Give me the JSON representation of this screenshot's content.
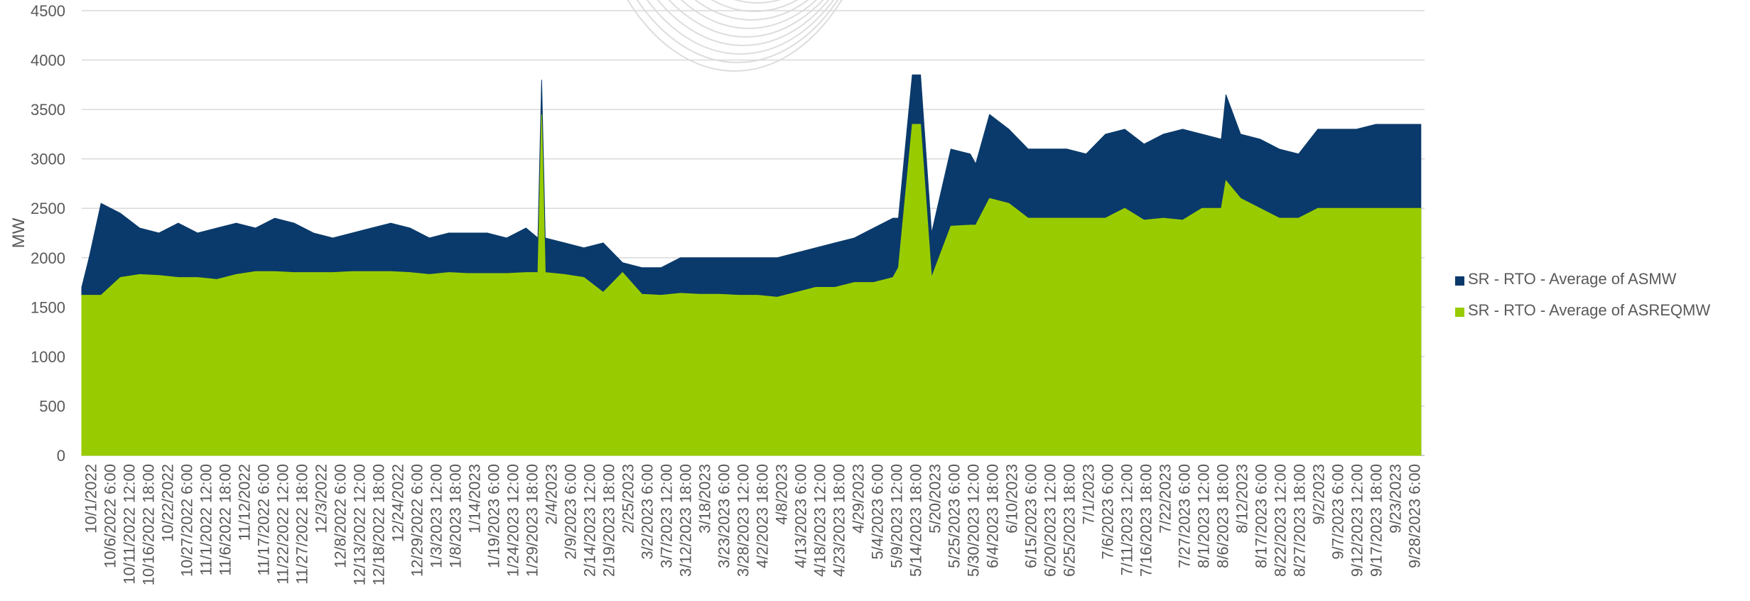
{
  "chart_data": {
    "type": "area",
    "title": "",
    "xlabel": "",
    "ylabel": "MW",
    "ylim": [
      0,
      4500
    ],
    "yticks": [
      "0",
      "500",
      "1000",
      "1500",
      "2000",
      "2500",
      "3000",
      "3500",
      "4000",
      "4500"
    ],
    "grid": true,
    "legend_position": "right",
    "x_tick_labels": [
      "10/1/2022",
      "10/6/2022 6:00",
      "10/11/2022 12:00",
      "10/16/2022 18:00",
      "10/22/2022",
      "10/27/2022 6:00",
      "11/1/2022 12:00",
      "11/6/2022 18:00",
      "11/12/2022",
      "11/17/2022 6:00",
      "11/22/2022 12:00",
      "11/27/2022 18:00",
      "12/3/2022",
      "12/8/2022 6:00",
      "12/13/2022 12:00",
      "12/18/2022 18:00",
      "12/24/2022",
      "12/29/2022 6:00",
      "1/3/2023 12:00",
      "1/8/2023 18:00",
      "1/14/2023",
      "1/19/2023 6:00",
      "1/24/2023 12:00",
      "1/29/2023 18:00",
      "2/4/2023",
      "2/9/2023 6:00",
      "2/14/2023 12:00",
      "2/19/2023 18:00",
      "2/25/2023",
      "3/2/2023 6:00",
      "3/7/2023 12:00",
      "3/12/2023 18:00",
      "3/18/2023",
      "3/23/2023 6:00",
      "3/28/2023 12:00",
      "4/2/2023 18:00",
      "4/8/2023",
      "4/13/2023 6:00",
      "4/18/2023 12:00",
      "4/23/2023 18:00",
      "4/29/2023",
      "5/4/2023 6:00",
      "5/9/2023 12:00",
      "5/14/2023 18:00",
      "5/20/2023",
      "5/25/2023 6:00",
      "5/30/2023 12:00",
      "6/4/2023 18:00",
      "6/10/2023",
      "6/15/2023 6:00",
      "6/20/2023 12:00",
      "6/25/2023 18:00",
      "7/1/2023",
      "7/6/2023 6:00",
      "7/11/2023 12:00",
      "7/16/2023 18:00",
      "7/22/2023",
      "7/27/2023 6:00",
      "8/1/2023 12:00",
      "8/6/2023 18:00",
      "8/12/2023",
      "8/17/2023 6:00",
      "8/22/2023 12:00",
      "8/27/2023 18:00",
      "9/2/2023",
      "9/7/2023 6:00",
      "9/12/2023 12:00",
      "9/17/2023 18:00",
      "9/23/2023",
      "9/28/2023 6:00"
    ],
    "colors": {
      "asmw": "#0a3a6b",
      "asreqmw": "#99cc00",
      "grid": "#d9d9d9",
      "watermark": "#dddddd"
    },
    "series": [
      {
        "name": "SR - RTO - Average of ASMW",
        "color": "#0a3a6b",
        "x": [
          "10/1/2022",
          "10/3/2022",
          "10/6/2022 6:00",
          "10/11/2022 12:00",
          "10/16/2022 18:00",
          "10/22/2022",
          "10/27/2022 6:00",
          "11/1/2022 12:00",
          "11/6/2022 18:00",
          "11/12/2022",
          "11/17/2022 6:00",
          "11/22/2022 12:00",
          "11/27/2022 18:00",
          "12/3/2022",
          "12/8/2022 6:00",
          "12/13/2022 12:00",
          "12/18/2022 18:00",
          "12/24/2022",
          "12/29/2022 6:00",
          "1/3/2023 12:00",
          "1/8/2023 18:00",
          "1/14/2023",
          "1/19/2023 6:00",
          "1/24/2023 12:00",
          "1/29/2023 18:00",
          "2/2/2023",
          "2/3/2023",
          "2/4/2023",
          "2/9/2023 6:00",
          "2/14/2023 12:00",
          "2/19/2023 18:00",
          "2/25/2023",
          "3/2/2023 6:00",
          "3/7/2023 12:00",
          "3/12/2023 18:00",
          "3/18/2023",
          "3/23/2023 6:00",
          "3/28/2023 12:00",
          "4/2/2023 18:00",
          "4/8/2023",
          "4/13/2023 6:00",
          "4/18/2023 12:00",
          "4/23/2023 18:00",
          "4/29/2023",
          "5/4/2023 6:00",
          "5/9/2023 12:00",
          "5/11/2023",
          "5/14/2023 18:00",
          "5/17/2023",
          "5/20/2023",
          "5/25/2023 6:00",
          "5/30/2023 12:00",
          "6/1/2023",
          "6/4/2023 18:00",
          "6/10/2023",
          "6/15/2023 6:00",
          "6/20/2023 12:00",
          "6/25/2023 18:00",
          "7/1/2023",
          "7/6/2023 6:00",
          "7/11/2023 12:00",
          "7/16/2023 18:00",
          "7/22/2023",
          "7/27/2023 6:00",
          "8/1/2023 12:00",
          "8/6/2023 18:00",
          "8/8/2023",
          "8/12/2023",
          "8/17/2023 6:00",
          "8/22/2023 12:00",
          "8/27/2023 18:00",
          "9/2/2023",
          "9/7/2023 6:00",
          "9/12/2023 12:00",
          "9/17/2023 18:00",
          "9/23/2023",
          "9/28/2023 6:00",
          "9/30/2023"
        ],
        "values": [
          1700,
          2000,
          2550,
          2450,
          2300,
          2250,
          2350,
          2250,
          2300,
          2350,
          2300,
          2400,
          2350,
          2250,
          2200,
          2250,
          2300,
          2350,
          2300,
          2200,
          2250,
          2250,
          2250,
          2200,
          2300,
          2200,
          3800,
          2200,
          2150,
          2100,
          2150,
          1950,
          1900,
          1900,
          2000,
          2000,
          2000,
          2000,
          2000,
          2000,
          2050,
          2100,
          2150,
          2200,
          2300,
          2400,
          2400,
          3850,
          3850,
          2250,
          3100,
          3050,
          2950,
          3450,
          3300,
          3100,
          3100,
          3100,
          3050,
          3250,
          3300,
          3150,
          3250,
          3300,
          3250,
          3200,
          3650,
          3250,
          3200,
          3100,
          3050,
          3300,
          3300,
          3300,
          3350,
          3350,
          3350,
          3350
        ]
      },
      {
        "name": "SR - RTO - Average of ASREQMW",
        "color": "#99cc00",
        "x": [
          "10/1/2022",
          "10/3/2022",
          "10/6/2022 6:00",
          "10/11/2022 12:00",
          "10/16/2022 18:00",
          "10/22/2022",
          "10/27/2022 6:00",
          "11/1/2022 12:00",
          "11/6/2022 18:00",
          "11/12/2022",
          "11/17/2022 6:00",
          "11/22/2022 12:00",
          "11/27/2022 18:00",
          "12/3/2022",
          "12/8/2022 6:00",
          "12/13/2022 12:00",
          "12/18/2022 18:00",
          "12/24/2022",
          "12/29/2022 6:00",
          "1/3/2023 12:00",
          "1/8/2023 18:00",
          "1/14/2023",
          "1/19/2023 6:00",
          "1/24/2023 12:00",
          "1/29/2023 18:00",
          "2/2/2023",
          "2/3/2023",
          "2/4/2023",
          "2/9/2023 6:00",
          "2/14/2023 12:00",
          "2/19/2023 18:00",
          "2/25/2023",
          "3/2/2023 6:00",
          "3/7/2023 12:00",
          "3/12/2023 18:00",
          "3/18/2023",
          "3/23/2023 6:00",
          "3/28/2023 12:00",
          "4/2/2023 18:00",
          "4/8/2023",
          "4/13/2023 6:00",
          "4/18/2023 12:00",
          "4/23/2023 18:00",
          "4/29/2023",
          "5/4/2023 6:00",
          "5/9/2023 12:00",
          "5/11/2023",
          "5/14/2023 18:00",
          "5/17/2023",
          "5/20/2023",
          "5/25/2023 6:00",
          "5/30/2023 12:00",
          "6/1/2023",
          "6/4/2023 18:00",
          "6/10/2023",
          "6/15/2023 6:00",
          "6/20/2023 12:00",
          "6/25/2023 18:00",
          "7/1/2023",
          "7/6/2023 6:00",
          "7/11/2023 12:00",
          "7/16/2023 18:00",
          "7/22/2023",
          "7/27/2023 6:00",
          "8/1/2023 12:00",
          "8/6/2023 18:00",
          "8/8/2023",
          "8/12/2023",
          "8/17/2023 6:00",
          "8/22/2023 12:00",
          "8/27/2023 18:00",
          "9/2/2023",
          "9/7/2023 6:00",
          "9/12/2023 12:00",
          "9/17/2023 18:00",
          "9/23/2023",
          "9/28/2023 6:00",
          "9/30/2023"
        ],
        "values": [
          1620,
          1620,
          1620,
          1800,
          1830,
          1820,
          1800,
          1800,
          1780,
          1830,
          1860,
          1860,
          1850,
          1850,
          1850,
          1860,
          1860,
          1860,
          1850,
          1830,
          1850,
          1840,
          1840,
          1840,
          1850,
          1850,
          3450,
          1850,
          1830,
          1800,
          1650,
          1850,
          1630,
          1620,
          1640,
          1630,
          1630,
          1620,
          1620,
          1600,
          1650,
          1700,
          1700,
          1750,
          1750,
          1800,
          1900,
          3350,
          3350,
          1800,
          2320,
          2330,
          2330,
          2600,
          2550,
          2400,
          2400,
          2400,
          2400,
          2400,
          2500,
          2380,
          2400,
          2380,
          2500,
          2500,
          2780,
          2600,
          2500,
          2400,
          2400,
          2500,
          2500,
          2500,
          2500,
          2500,
          2500,
          2500
        ]
      }
    ]
  }
}
